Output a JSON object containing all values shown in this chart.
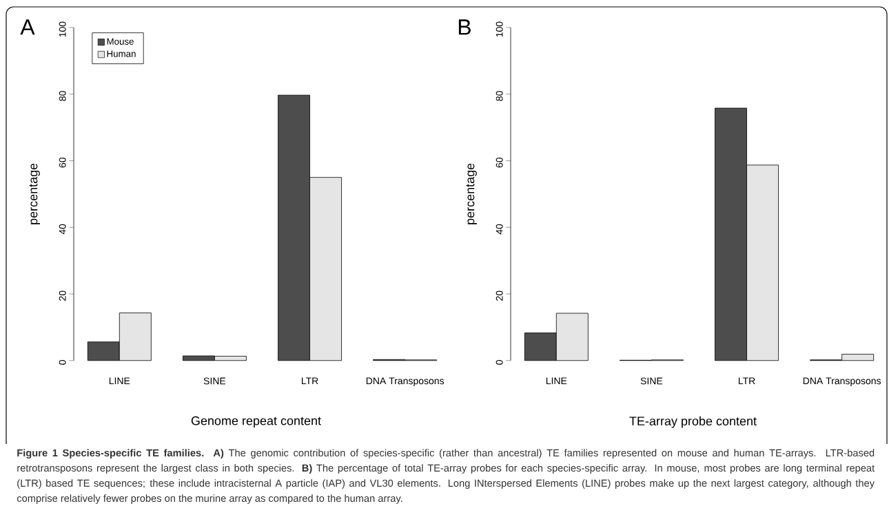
{
  "chart_data": [
    {
      "type": "bar",
      "annotations": [
        "A",
        "**Figure 1 Species-specific TE families. A)** The genomic contribution of species-specific (rather than ancestral) TE families represented on mouse and human TE-arrays. LTR-based retrotransposons represent the largest class in both species. **B)** The percentage of total TE-array probes for each species-specific array. In mouse, most probes are long terminal repeat (LTR) based TE sequences; these include intracisternal A particle (IAP) and VL30 elements. Long INterspersed Elements (LINE) probes make up the next largest category, although they comprise relatively fewer probes on the murine array as compared to the human array."
      ],
      "xlabel": "Genome repeat content",
      "ylabel": "percentage",
      "categories": [
        "LINE",
        "SINE",
        "LTR",
        "DNA Transposons"
      ],
      "ylim": [
        0,
        100
      ],
      "yticks": [
        0,
        20,
        40,
        60,
        80,
        100
      ],
      "legend": "top left",
      "series": [
        {
          "name": "Mouse",
          "color": "#4d4d4d",
          "values": [
            5.6,
            1.4,
            79.7,
            0.3
          ]
        },
        {
          "name": "Human",
          "color": "#e5e5e5",
          "values": [
            14.3,
            1.3,
            55.0,
            0.2
          ]
        }
      ]
    },
    {
      "type": "bar",
      "annotations": [
        "B"
      ],
      "xlabel": "TE-array probe content",
      "ylabel": "percentage",
      "categories": [
        "LINE",
        "SINE",
        "LTR",
        "DNA Transposons"
      ],
      "ylim": [
        0,
        100
      ],
      "yticks": [
        0,
        20,
        40,
        60,
        80,
        100
      ],
      "series": [
        {
          "color": "#4d4d4d",
          "values": [
            8.3,
            0.1,
            75.8,
            0.2
          ]
        },
        {
          "color": "#e5e5e5",
          "values": [
            14.2,
            0.2,
            58.7,
            1.9
          ]
        }
      ]
    }
  ]
}
